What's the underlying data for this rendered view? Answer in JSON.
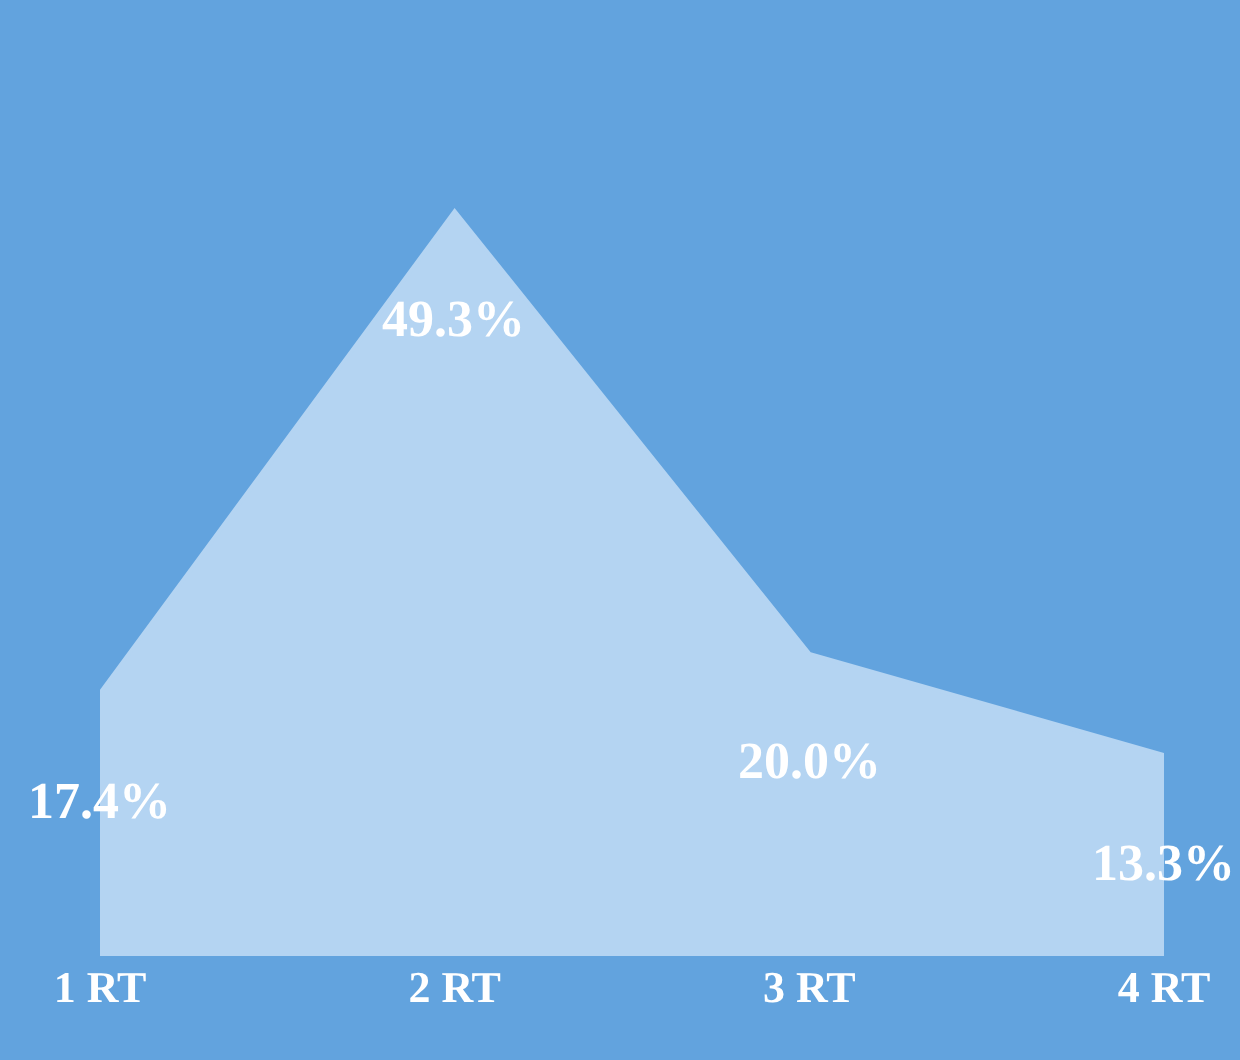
{
  "chart_data": {
    "type": "area",
    "categories": [
      "1 RT",
      "2 RT",
      "3 RT",
      "4 RT"
    ],
    "series": [
      {
        "color": "#b4d4f2",
        "values": [
          17.4,
          49.3,
          20.0,
          13.3
        ],
        "value_labels": [
          "17.4%",
          "49.3%",
          "20.0%",
          "13.3%"
        ]
      }
    ]
  }
}
